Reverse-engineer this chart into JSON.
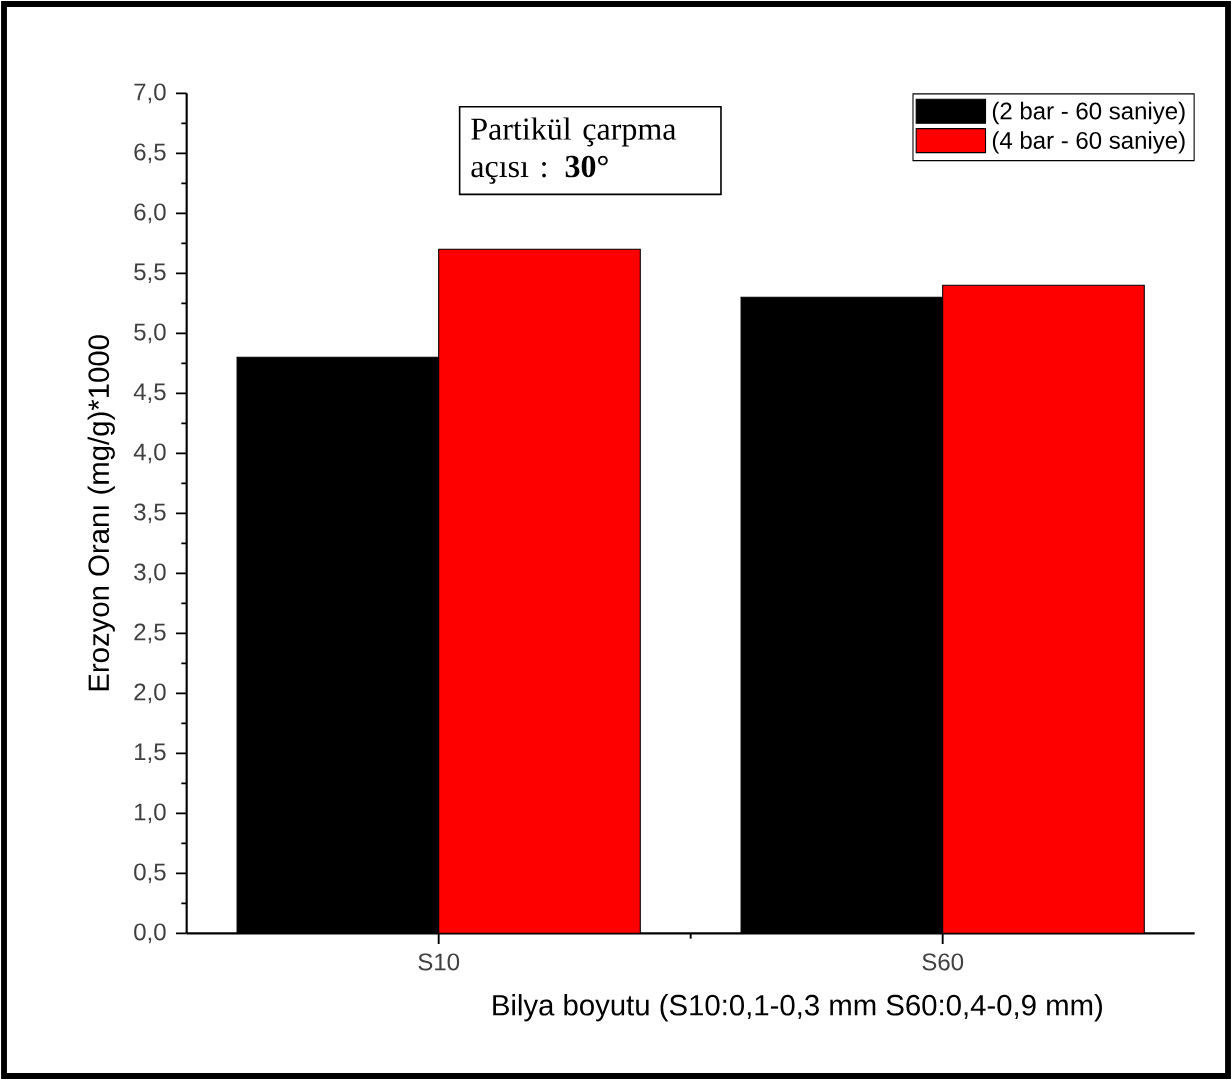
{
  "chart_data": {
    "type": "bar",
    "xlabel": "Bilya boyutu (S10:0,1-0,3 mm  S60:0,4-0,9 mm)",
    "ylabel": "Erozyon Oranı (mg/g)*1000",
    "categories": [
      "S10",
      "S60"
    ],
    "series": [
      {
        "name": "(2 bar - 60 saniye)",
        "color": "#000000",
        "values": [
          4.8,
          5.3
        ]
      },
      {
        "name": "(4 bar - 60 saniye)",
        "color": "#ff0000",
        "values": [
          5.7,
          5.4
        ]
      }
    ],
    "ylim": [
      0,
      7
    ],
    "yticks": [
      {
        "value": 0,
        "label": "0,0"
      },
      {
        "value": 0.5,
        "label": "0,5"
      },
      {
        "value": 1,
        "label": "1,0"
      },
      {
        "value": 1.5,
        "label": "1,5"
      },
      {
        "value": 2,
        "label": "2,0"
      },
      {
        "value": 2.5,
        "label": "2,5"
      },
      {
        "value": 3,
        "label": "3,0"
      },
      {
        "value": 3.5,
        "label": "3,5"
      },
      {
        "value": 4,
        "label": "4,0"
      },
      {
        "value": 4.5,
        "label": "4,5"
      },
      {
        "value": 5,
        "label": "5,0"
      },
      {
        "value": 5.5,
        "label": "5,5"
      },
      {
        "value": 6,
        "label": "6,0"
      },
      {
        "value": 6.5,
        "label": "6,5"
      },
      {
        "value": 7,
        "label": "7,0"
      }
    ],
    "annotations": [
      "Partikül çarpma açısı : **30°**"
    ],
    "legend": "top right",
    "grid": false
  }
}
